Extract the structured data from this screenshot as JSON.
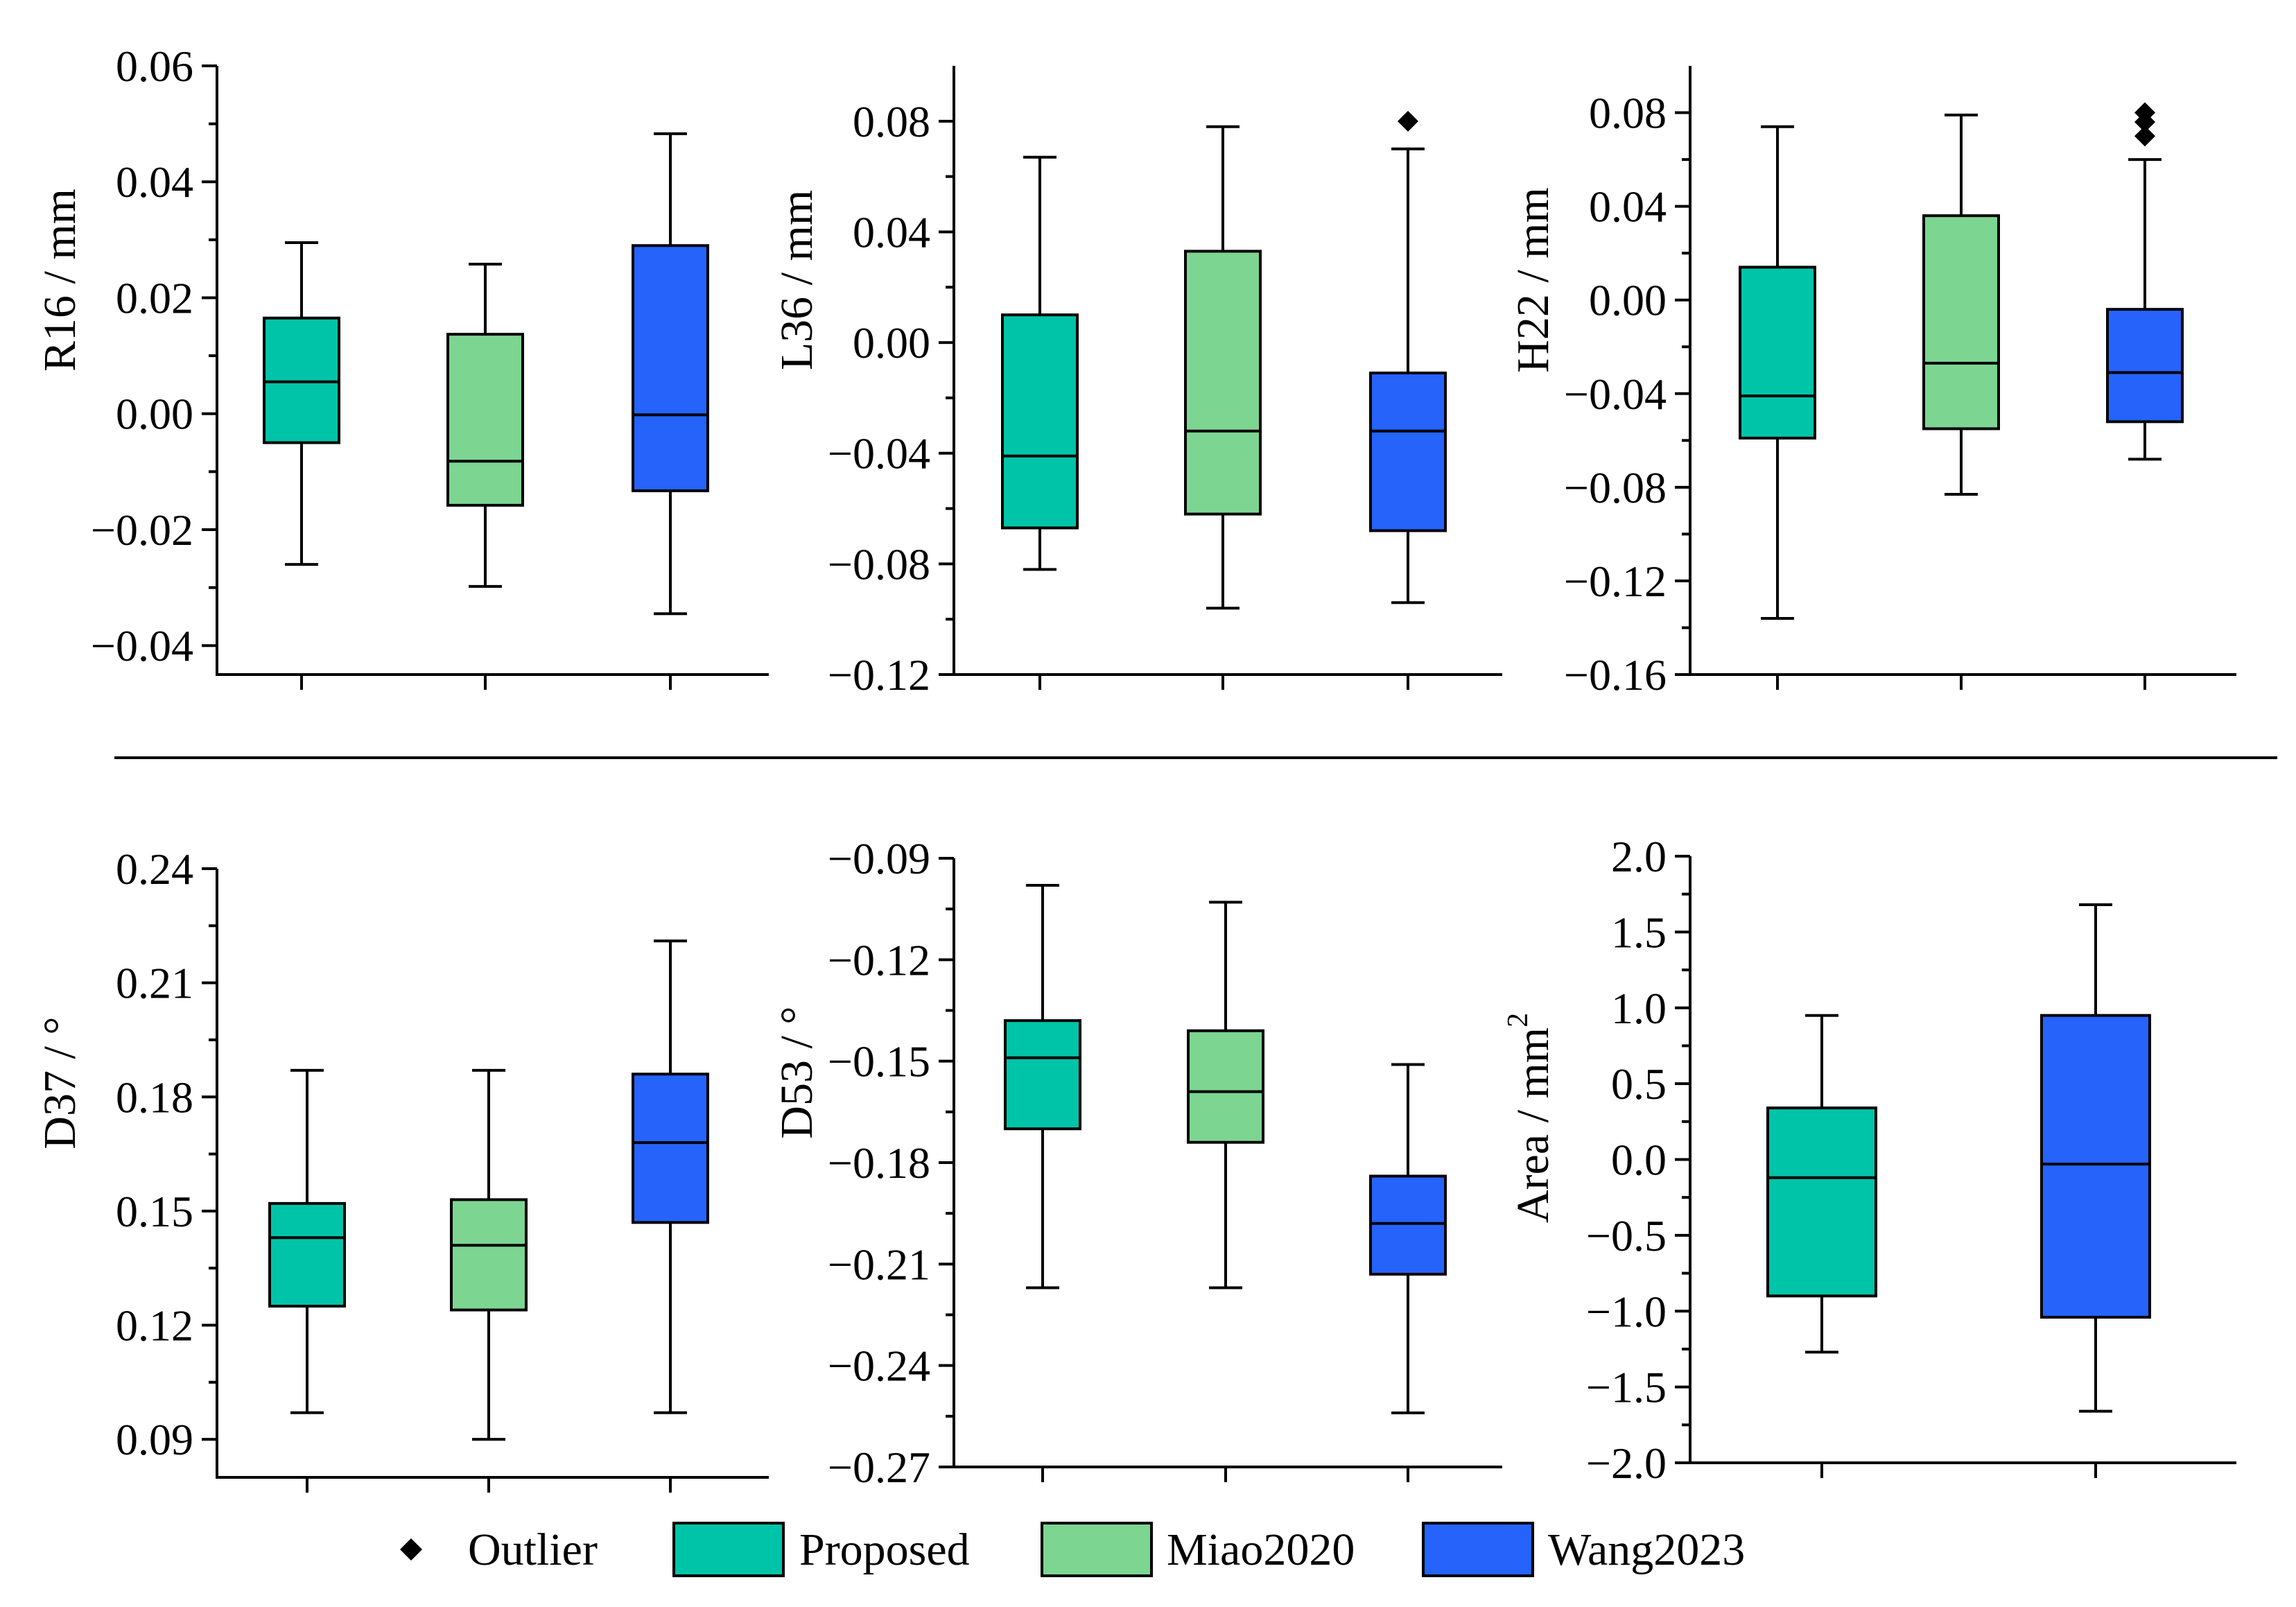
{
  "colors": {
    "Proposed": "#00c4a8",
    "Miao2020": "#7dd592",
    "Wang2023": "#2563fb",
    "outlier": "#000000"
  },
  "legend": {
    "items": [
      {
        "key": "outlier",
        "label": "Outlier"
      },
      {
        "key": "Proposed",
        "label": "Proposed"
      },
      {
        "key": "Miao2020",
        "label": "Miao2020"
      },
      {
        "key": "Wang2023",
        "label": "Wang2023"
      }
    ]
  },
  "chart_data": [
    {
      "id": "r16",
      "type": "box",
      "ylabel": "R16 / mm",
      "ylim": [
        -0.045,
        0.06
      ],
      "ticks": [
        0.06,
        0.04,
        0.02,
        0.0,
        -0.02,
        -0.04
      ],
      "tick_labels": [
        "0.06",
        "0.04",
        "0.02",
        "0.00",
        "−0.02",
        "−0.04"
      ],
      "groups": [
        {
          "name": "Proposed",
          "whisker_low": -0.026,
          "q1": -0.005,
          "median": 0.0055,
          "q3": 0.0165,
          "whisker_high": 0.0295,
          "outliers": []
        },
        {
          "name": "Miao2020",
          "whisker_low": -0.0298,
          "q1": -0.0158,
          "median": -0.0082,
          "q3": 0.0137,
          "whisker_high": 0.0258,
          "outliers": []
        },
        {
          "name": "Wang2023",
          "whisker_low": -0.0345,
          "q1": -0.0133,
          "median": -0.0002,
          "q3": 0.029,
          "whisker_high": 0.0483,
          "outliers": []
        }
      ]
    },
    {
      "id": "l36",
      "type": "box",
      "ylabel": "L36 / mm",
      "ylim": [
        -0.12,
        0.1
      ],
      "ticks": [
        0.08,
        0.04,
        0.0,
        -0.04,
        -0.08,
        -0.12
      ],
      "tick_labels": [
        "0.08",
        "0.04",
        "0.00",
        "−0.04",
        "−0.08",
        "−0.12"
      ],
      "groups": [
        {
          "name": "Proposed",
          "whisker_low": -0.082,
          "q1": -0.067,
          "median": -0.041,
          "q3": 0.01,
          "whisker_high": 0.067,
          "outliers": []
        },
        {
          "name": "Miao2020",
          "whisker_low": -0.096,
          "q1": -0.062,
          "median": -0.032,
          "q3": 0.033,
          "whisker_high": 0.078,
          "outliers": []
        },
        {
          "name": "Wang2023",
          "whisker_low": -0.094,
          "q1": -0.068,
          "median": -0.032,
          "q3": -0.011,
          "whisker_high": 0.07,
          "outliers": [
            0.08
          ]
        }
      ]
    },
    {
      "id": "h22",
      "type": "box",
      "ylabel": "H22 / mm",
      "ylim": [
        -0.16,
        0.1
      ],
      "ticks": [
        0.08,
        0.04,
        0.0,
        -0.04,
        -0.08,
        -0.12,
        -0.16
      ],
      "tick_labels": [
        "0.08",
        "0.04",
        "0.00",
        "−0.04",
        "−0.08",
        "−0.12",
        "−0.16"
      ],
      "groups": [
        {
          "name": "Proposed",
          "whisker_low": -0.136,
          "q1": -0.059,
          "median": -0.041,
          "q3": 0.014,
          "whisker_high": 0.074,
          "outliers": []
        },
        {
          "name": "Miao2020",
          "whisker_low": -0.083,
          "q1": -0.055,
          "median": -0.027,
          "q3": 0.036,
          "whisker_high": 0.079,
          "outliers": []
        },
        {
          "name": "Wang2023",
          "whisker_low": -0.068,
          "q1": -0.052,
          "median": -0.031,
          "q3": -0.004,
          "whisker_high": 0.06,
          "outliers": [
            0.08,
            0.076,
            0.07
          ]
        }
      ]
    },
    {
      "id": "d37",
      "type": "box",
      "ylabel": "D37 / °",
      "ylim": [
        0.08,
        0.24
      ],
      "ticks": [
        0.24,
        0.21,
        0.18,
        0.15,
        0.12,
        0.09
      ],
      "tick_labels": [
        "0.24",
        "0.21",
        "0.18",
        "0.15",
        "0.12",
        "0.09"
      ],
      "groups": [
        {
          "name": "Proposed",
          "whisker_low": 0.097,
          "q1": 0.125,
          "median": 0.143,
          "q3": 0.152,
          "whisker_high": 0.187,
          "outliers": []
        },
        {
          "name": "Miao2020",
          "whisker_low": 0.09,
          "q1": 0.124,
          "median": 0.141,
          "q3": 0.153,
          "whisker_high": 0.187,
          "outliers": []
        },
        {
          "name": "Wang2023",
          "whisker_low": 0.097,
          "q1": 0.147,
          "median": 0.168,
          "q3": 0.186,
          "whisker_high": 0.221,
          "outliers": []
        }
      ]
    },
    {
      "id": "d53",
      "type": "box",
      "ylabel": "D53 / °",
      "ylim": [
        -0.27,
        -0.09
      ],
      "ticks": [
        -0.09,
        -0.12,
        -0.15,
        -0.18,
        -0.21,
        -0.24,
        -0.27
      ],
      "tick_labels": [
        "−0.09",
        "−0.12",
        "−0.15",
        "−0.18",
        "−0.21",
        "−0.24",
        "−0.27"
      ],
      "groups": [
        {
          "name": "Proposed",
          "whisker_low": -0.217,
          "q1": -0.17,
          "median": -0.149,
          "q3": -0.138,
          "whisker_high": -0.098,
          "outliers": []
        },
        {
          "name": "Miao2020",
          "whisker_low": -0.217,
          "q1": -0.174,
          "median": -0.159,
          "q3": -0.141,
          "whisker_high": -0.103,
          "outliers": []
        },
        {
          "name": "Wang2023",
          "whisker_low": -0.254,
          "q1": -0.213,
          "median": -0.198,
          "q3": -0.184,
          "whisker_high": -0.151,
          "outliers": []
        }
      ]
    },
    {
      "id": "area",
      "type": "box",
      "ylabel": "Area  / mm",
      "ylabel_sup": "2",
      "ylim": [
        -2.0,
        2.0
      ],
      "ticks": [
        2.0,
        1.5,
        1.0,
        0.5,
        0.0,
        -0.5,
        -1.0,
        -1.5,
        -2.0
      ],
      "tick_labels": [
        "2.0",
        "1.5",
        "1.0",
        "0.5",
        "0.0",
        "−0.5",
        "−1.0",
        "−1.5",
        "−2.0"
      ],
      "groups": [
        {
          "name": "Proposed",
          "whisker_low": -1.27,
          "q1": -0.9,
          "median": -0.12,
          "q3": 0.34,
          "whisker_high": 0.95,
          "outliers": []
        },
        {
          "name": "Wang2023",
          "whisker_low": -1.66,
          "q1": -1.04,
          "median": -0.03,
          "q3": 0.95,
          "whisker_high": 1.68,
          "outliers": []
        }
      ]
    }
  ]
}
